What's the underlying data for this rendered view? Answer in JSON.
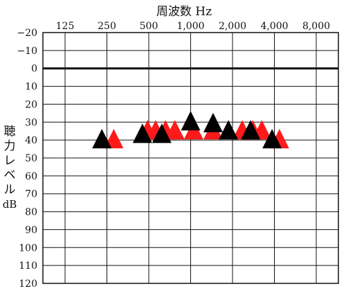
{
  "chart_data": {
    "type": "scatter",
    "title": "",
    "xlabel": "周波数 Hz",
    "ylabel": [
      "聴",
      "力",
      "レ",
      "ベ",
      "ル",
      "dB"
    ],
    "x_scale": "log2",
    "x_ticks": [
      125,
      250,
      500,
      1000,
      2000,
      4000,
      8000
    ],
    "x_tick_labels": [
      "125",
      "250",
      "500",
      "1,000",
      "2,000",
      "4,000",
      "8,000"
    ],
    "y_inverted": true,
    "ylim": [
      -20,
      120
    ],
    "y_ticks": [
      -20,
      -10,
      0,
      10,
      20,
      30,
      40,
      50,
      60,
      70,
      80,
      90,
      100,
      110,
      120
    ],
    "y_tick_labels": [
      "−20",
      "−10",
      "0",
      "10",
      "20",
      "30",
      "40",
      "50",
      "60",
      "70",
      "80",
      "90",
      "100",
      "110",
      "120"
    ],
    "grid": true,
    "reference_line": 0,
    "marker": "triangle",
    "series": [
      {
        "color": "#ff1a1a",
        "points": [
          {
            "x": 280,
            "y": 40
          },
          {
            "x": 490,
            "y": 35
          },
          {
            "x": 560,
            "y": 35
          },
          {
            "x": 660,
            "y": 35
          },
          {
            "x": 770,
            "y": 35
          },
          {
            "x": 1050,
            "y": 35
          },
          {
            "x": 1450,
            "y": 35
          },
          {
            "x": 2350,
            "y": 35
          },
          {
            "x": 2800,
            "y": 35
          },
          {
            "x": 3250,
            "y": 35
          },
          {
            "x": 4350,
            "y": 40
          }
        ]
      },
      {
        "color": "#000000",
        "points": [
          {
            "x": 230,
            "y": 40
          },
          {
            "x": 450,
            "y": 37
          },
          {
            "x": 620,
            "y": 37
          },
          {
            "x": 1000,
            "y": 30
          },
          {
            "x": 1450,
            "y": 31
          },
          {
            "x": 1870,
            "y": 35
          },
          {
            "x": 2700,
            "y": 35
          },
          {
            "x": 3850,
            "y": 40
          }
        ]
      }
    ]
  }
}
